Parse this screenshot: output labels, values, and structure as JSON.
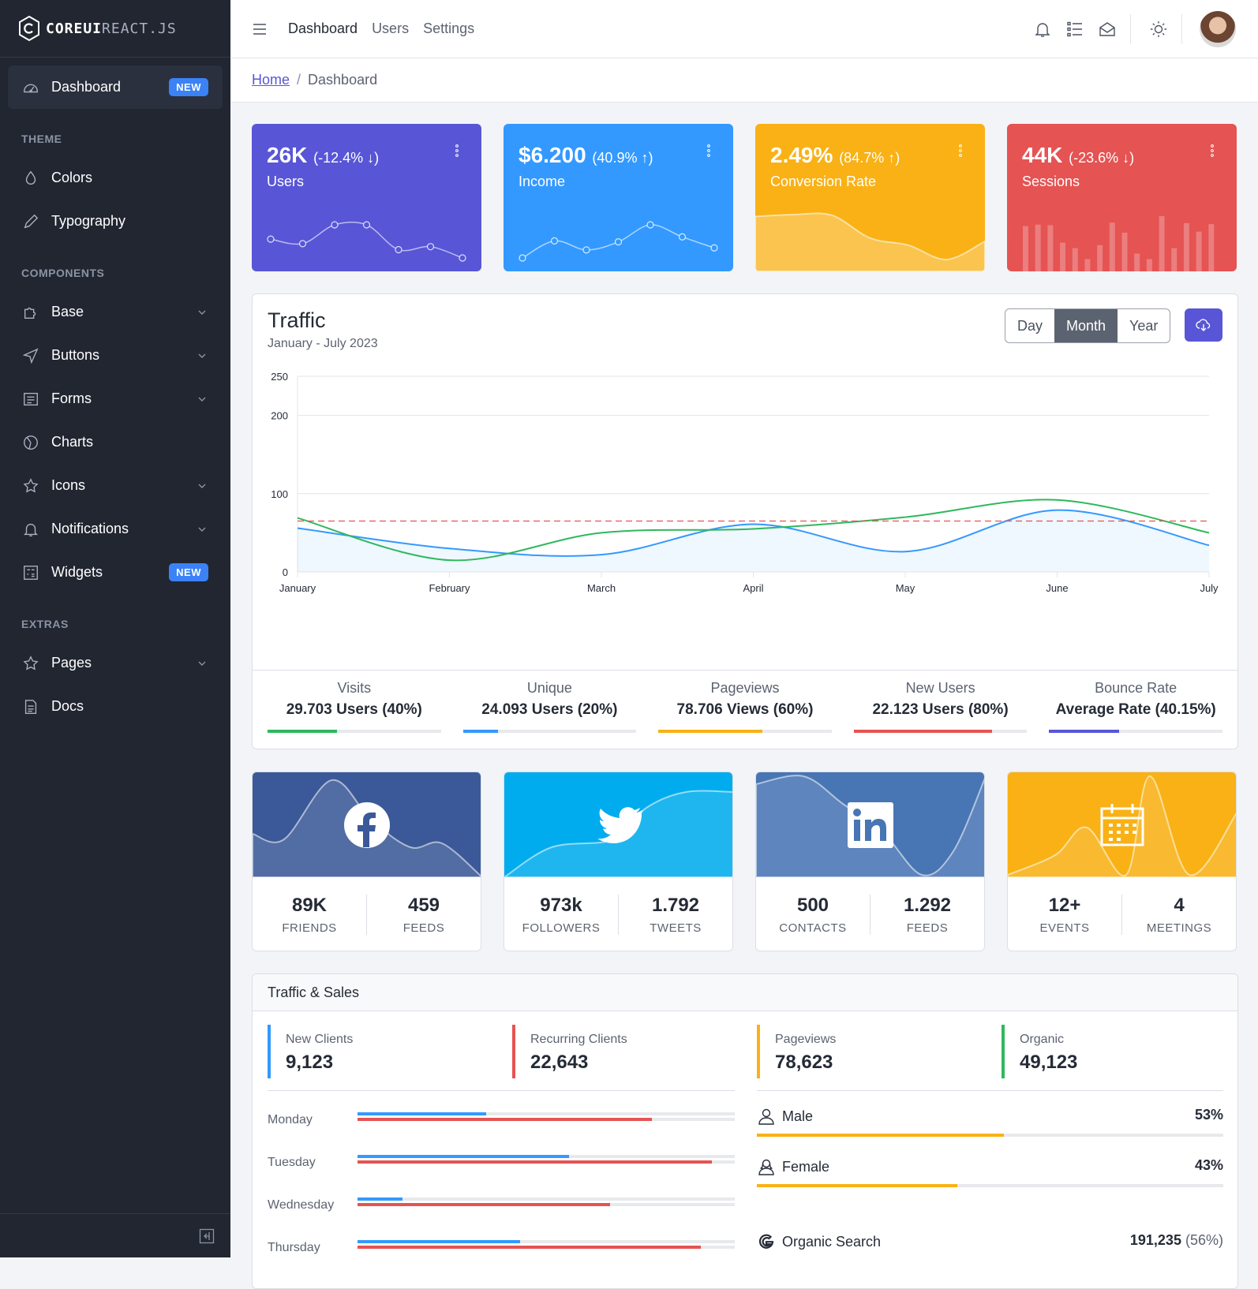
{
  "brand": {
    "bold": "COREUI",
    "light": "REACT.JS"
  },
  "sidebar": {
    "dashboard": {
      "label": "Dashboard",
      "badge": "NEW",
      "icon": "speedometer-icon"
    },
    "theme_title": "THEME",
    "theme_items": [
      {
        "label": "Colors",
        "icon": "drop-icon"
      },
      {
        "label": "Typography",
        "icon": "pencil-icon"
      }
    ],
    "components_title": "COMPONENTS",
    "components_items": [
      {
        "label": "Base",
        "icon": "puzzle-icon"
      },
      {
        "label": "Buttons",
        "icon": "cursor-icon"
      },
      {
        "label": "Forms",
        "icon": "notes-icon"
      },
      {
        "label": "Charts",
        "icon": "chart-pie-icon"
      },
      {
        "label": "Icons",
        "icon": "star-icon"
      },
      {
        "label": "Notifications",
        "icon": "bell-icon"
      },
      {
        "label": "Widgets",
        "badge": "NEW",
        "icon": "calculator-icon"
      }
    ],
    "extras_title": "EXTRAS",
    "extras_items": [
      {
        "label": "Pages",
        "icon": "star-icon"
      },
      {
        "label": "Docs",
        "icon": "description-icon"
      }
    ]
  },
  "header": {
    "nav": [
      "Dashboard",
      "Users",
      "Settings"
    ]
  },
  "breadcrumb": {
    "home": "Home",
    "current": "Dashboard"
  },
  "widgets": [
    {
      "value": "26K",
      "change": "(-12.4% ↓)",
      "label": "Users",
      "color": "#5856d6",
      "trend": [
        65,
        59,
        84,
        84,
        51,
        55,
        40
      ]
    },
    {
      "value": "$6.200",
      "change": "(40.9% ↑)",
      "label": "Income",
      "color": "#3399ff",
      "trend": [
        1,
        18,
        9,
        17,
        34,
        22,
        11
      ]
    },
    {
      "value": "2.49%",
      "change": "(84.7% ↑)",
      "label": "Conversion Rate",
      "color": "#f9b115",
      "trend": [
        78,
        81,
        80,
        45,
        34,
        12,
        40
      ]
    },
    {
      "value": "44K",
      "change": "(-23.6% ↓)",
      "label": "Sessions",
      "color": "#e55353",
      "trend": [
        78,
        81,
        80,
        45,
        34,
        12,
        40,
        85,
        65,
        23,
        12,
        98,
        34,
        84,
        67,
        82
      ]
    }
  ],
  "traffic": {
    "title": "Traffic",
    "subtitle": "January - July 2023",
    "ranges": [
      "Day",
      "Month",
      "Year"
    ],
    "selected_range": "Month",
    "chart_data": {
      "type": "line",
      "categories": [
        "January",
        "February",
        "March",
        "April",
        "May",
        "June",
        "July"
      ],
      "yticks": [
        0,
        100,
        200,
        250
      ],
      "ylim": [
        0,
        250
      ],
      "series": [
        {
          "values": [
            56,
            30,
            22,
            61,
            26,
            79,
            34
          ],
          "color": "#3399ff",
          "fill": true
        },
        {
          "values": [
            69,
            15,
            50,
            55,
            70,
            92,
            50
          ],
          "color": "#2eb85c"
        },
        {
          "values": [
            65,
            65,
            65,
            65,
            65,
            65,
            65
          ],
          "color": "#e55353",
          "dashed": true
        }
      ]
    },
    "stats": [
      {
        "name": "Visits",
        "value": "29.703 Users (40%)",
        "percent": 40,
        "color": "#2eb85c"
      },
      {
        "name": "Unique",
        "value": "24.093 Users (20%)",
        "percent": 20,
        "color": "#3399ff"
      },
      {
        "name": "Pageviews",
        "value": "78.706 Views (60%)",
        "percent": 60,
        "color": "#f9b115"
      },
      {
        "name": "New Users",
        "value": "22.123 Users (80%)",
        "percent": 80,
        "color": "#e55353"
      },
      {
        "name": "Bounce Rate",
        "value": "Average Rate (40.15%)",
        "percent": 40.15,
        "color": "#5856d6"
      }
    ]
  },
  "social": [
    {
      "network": "facebook",
      "icon": "facebook-icon",
      "color": "#3b5998",
      "a": "89K",
      "a_label": "FRIENDS",
      "b": "459",
      "b_label": "FEEDS"
    },
    {
      "network": "twitter",
      "icon": "twitter-icon",
      "color": "#00aced",
      "a": "973k",
      "a_label": "FOLLOWERS",
      "b": "1.792",
      "b_label": "TWEETS"
    },
    {
      "network": "linkedin",
      "icon": "linkedin-icon",
      "color": "#4875b4",
      "a": "500",
      "a_label": "CONTACTS",
      "b": "1.292",
      "b_label": "FEEDS"
    },
    {
      "network": "calendar",
      "icon": "calendar-icon",
      "color": "#f9b115",
      "a": "12+",
      "a_label": "EVENTS",
      "b": "4",
      "b_label": "MEETINGS"
    }
  ],
  "traffic_sales": {
    "title": "Traffic & Sales",
    "kpis": [
      {
        "label": "New Clients",
        "value": "9,123",
        "color": "#3399ff"
      },
      {
        "label": "Recurring Clients",
        "value": "22,643",
        "color": "#e55353"
      },
      {
        "label": "Pageviews",
        "value": "78,623",
        "color": "#f9b115"
      },
      {
        "label": "Organic",
        "value": "49,123",
        "color": "#2eb85c"
      }
    ],
    "days": [
      {
        "day": "Monday",
        "new": 34,
        "recurring": 78
      },
      {
        "day": "Tuesday",
        "new": 56,
        "recurring": 94
      },
      {
        "day": "Wednesday",
        "new": 12,
        "recurring": 67
      },
      {
        "day": "Thursday",
        "new": 43,
        "recurring": 91
      }
    ],
    "gender": [
      {
        "label": "Male",
        "value": "53%",
        "percent": 53,
        "icon": "user-icon"
      },
      {
        "label": "Female",
        "value": "43%",
        "percent": 43,
        "icon": "user-female-icon"
      }
    ],
    "organic_search": {
      "label": "Organic Search",
      "value": "191,235",
      "percent": "(56%)",
      "icon": "google-icon"
    }
  }
}
